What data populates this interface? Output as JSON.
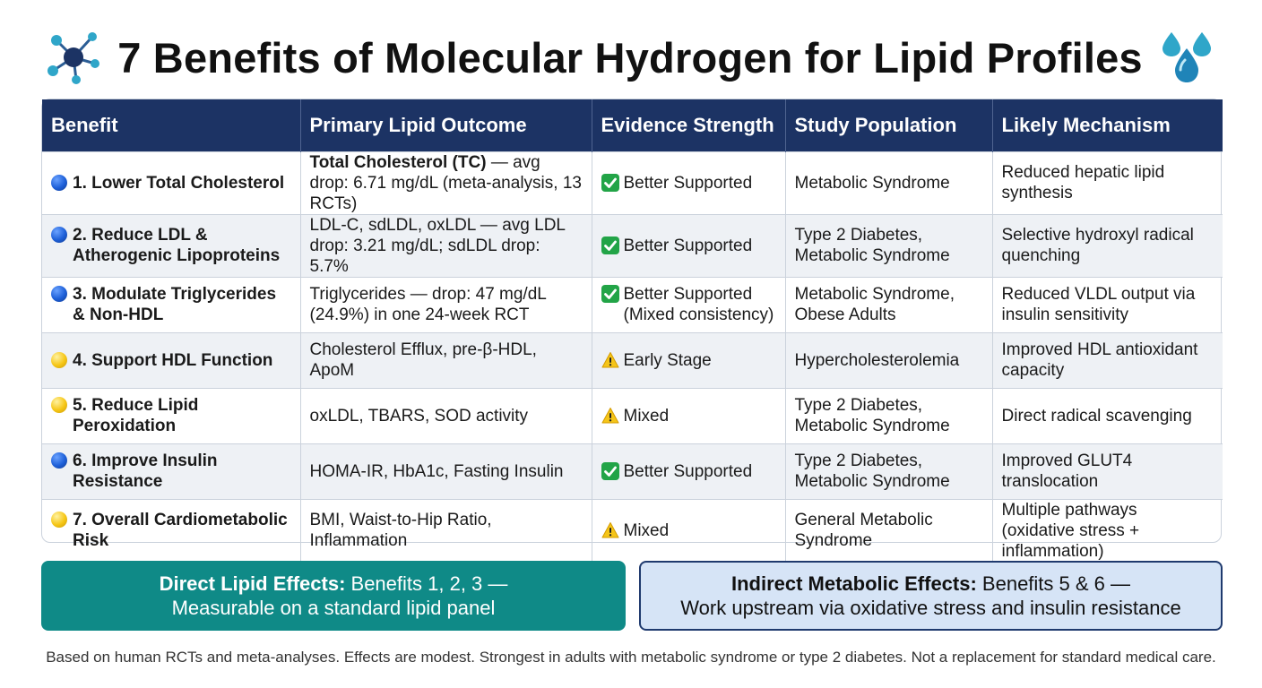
{
  "header": {
    "title": "7 Benefits of Molecular Hydrogen for Lipid Profiles",
    "left_icon": "molecule-network-icon",
    "right_icon": "water-drops-icon"
  },
  "table": {
    "columns": [
      "Benefit",
      "Primary Lipid Outcome",
      "Evidence Strength",
      "Study Population",
      "Likely Mechanism"
    ],
    "rows": [
      {
        "dot": "blue",
        "benefit": "1. Lower Total Cholesterol",
        "outcome_bold": "Total Cholesterol (TC)",
        "outcome": " — avg drop: 6.71 mg/dL (meta-analysis, 13 RCTs)",
        "evidence_icon": "check",
        "evidence": "Better Supported",
        "population": "Metabolic Syndrome",
        "mechanism": "Reduced hepatic lipid synthesis"
      },
      {
        "dot": "blue",
        "benefit": "2. Reduce LDL & Atherogenic Lipoproteins",
        "outcome_bold": "",
        "outcome": "LDL-C, sdLDL, oxLDL — avg LDL drop: 3.21 mg/dL; sdLDL drop: 5.7%",
        "evidence_icon": "check",
        "evidence": "Better Supported",
        "population": "Type 2 Diabetes, Metabolic Syndrome",
        "mechanism": "Selective hydroxyl radical quenching"
      },
      {
        "dot": "blue",
        "benefit": "3. Modulate Triglycerides & Non-HDL",
        "outcome_bold": "",
        "outcome": "Triglycerides — drop: 47 mg/dL (24.9%) in one 24-week RCT",
        "evidence_icon": "check",
        "evidence": "Better Supported (Mixed consistency)",
        "population": "Metabolic Syndrome, Obese Adults",
        "mechanism": "Reduced VLDL output via insulin sensitivity"
      },
      {
        "dot": "yellow",
        "benefit": "4. Support HDL Function",
        "outcome_bold": "",
        "outcome": "Cholesterol Efflux, pre-β-HDL, ApoM",
        "evidence_icon": "warning",
        "evidence": "Early Stage",
        "population": "Hypercholesterolemia",
        "mechanism": "Improved HDL antioxidant capacity"
      },
      {
        "dot": "yellow",
        "benefit": "5. Reduce Lipid Peroxidation",
        "outcome_bold": "",
        "outcome": "oxLDL, TBARS, SOD activity",
        "evidence_icon": "warning",
        "evidence": "Mixed",
        "population": "Type 2 Diabetes, Metabolic Syndrome",
        "mechanism": "Direct radical scavenging"
      },
      {
        "dot": "blue",
        "benefit": "6. Improve Insulin Resistance",
        "outcome_bold": "",
        "outcome": "HOMA-IR, HbA1c, Fasting Insulin",
        "evidence_icon": "check",
        "evidence": "Better Supported",
        "population": "Type 2 Diabetes, Metabolic Syndrome",
        "mechanism": "Improved GLUT4 translocation"
      },
      {
        "dot": "yellow",
        "benefit": "7. Overall Cardiometabolic Risk",
        "outcome_bold": "",
        "outcome": "BMI, Waist-to-Hip Ratio, Inflammation",
        "evidence_icon": "warning",
        "evidence": "Mixed",
        "population": "General Metabolic Syndrome",
        "mechanism": "Multiple pathways (oxidative stress + inflammation)"
      }
    ]
  },
  "summary": {
    "direct_label": "Direct Lipid Effects:",
    "direct_line1": " Benefits 1, 2, 3 —",
    "direct_line2": "Measurable on a standard lipid panel",
    "indirect_label": "Indirect Metabolic Effects:",
    "indirect_line1": " Benefits 5 & 6 —",
    "indirect_line2": "Work upstream via oxidative stress and insulin resistance"
  },
  "footer": {
    "note": "Based on human RCTs and meta-analyses. Effects are modest. Strongest in adults with metabolic syndrome or type 2 diabetes. Not a replacement for standard medical care."
  },
  "colors": {
    "header_bg": "#1c3364",
    "direct_bg": "#0f8a87",
    "indirect_bg": "#d6e4f6",
    "check_green": "#22a447",
    "warning_yellow": "#f5c518"
  }
}
